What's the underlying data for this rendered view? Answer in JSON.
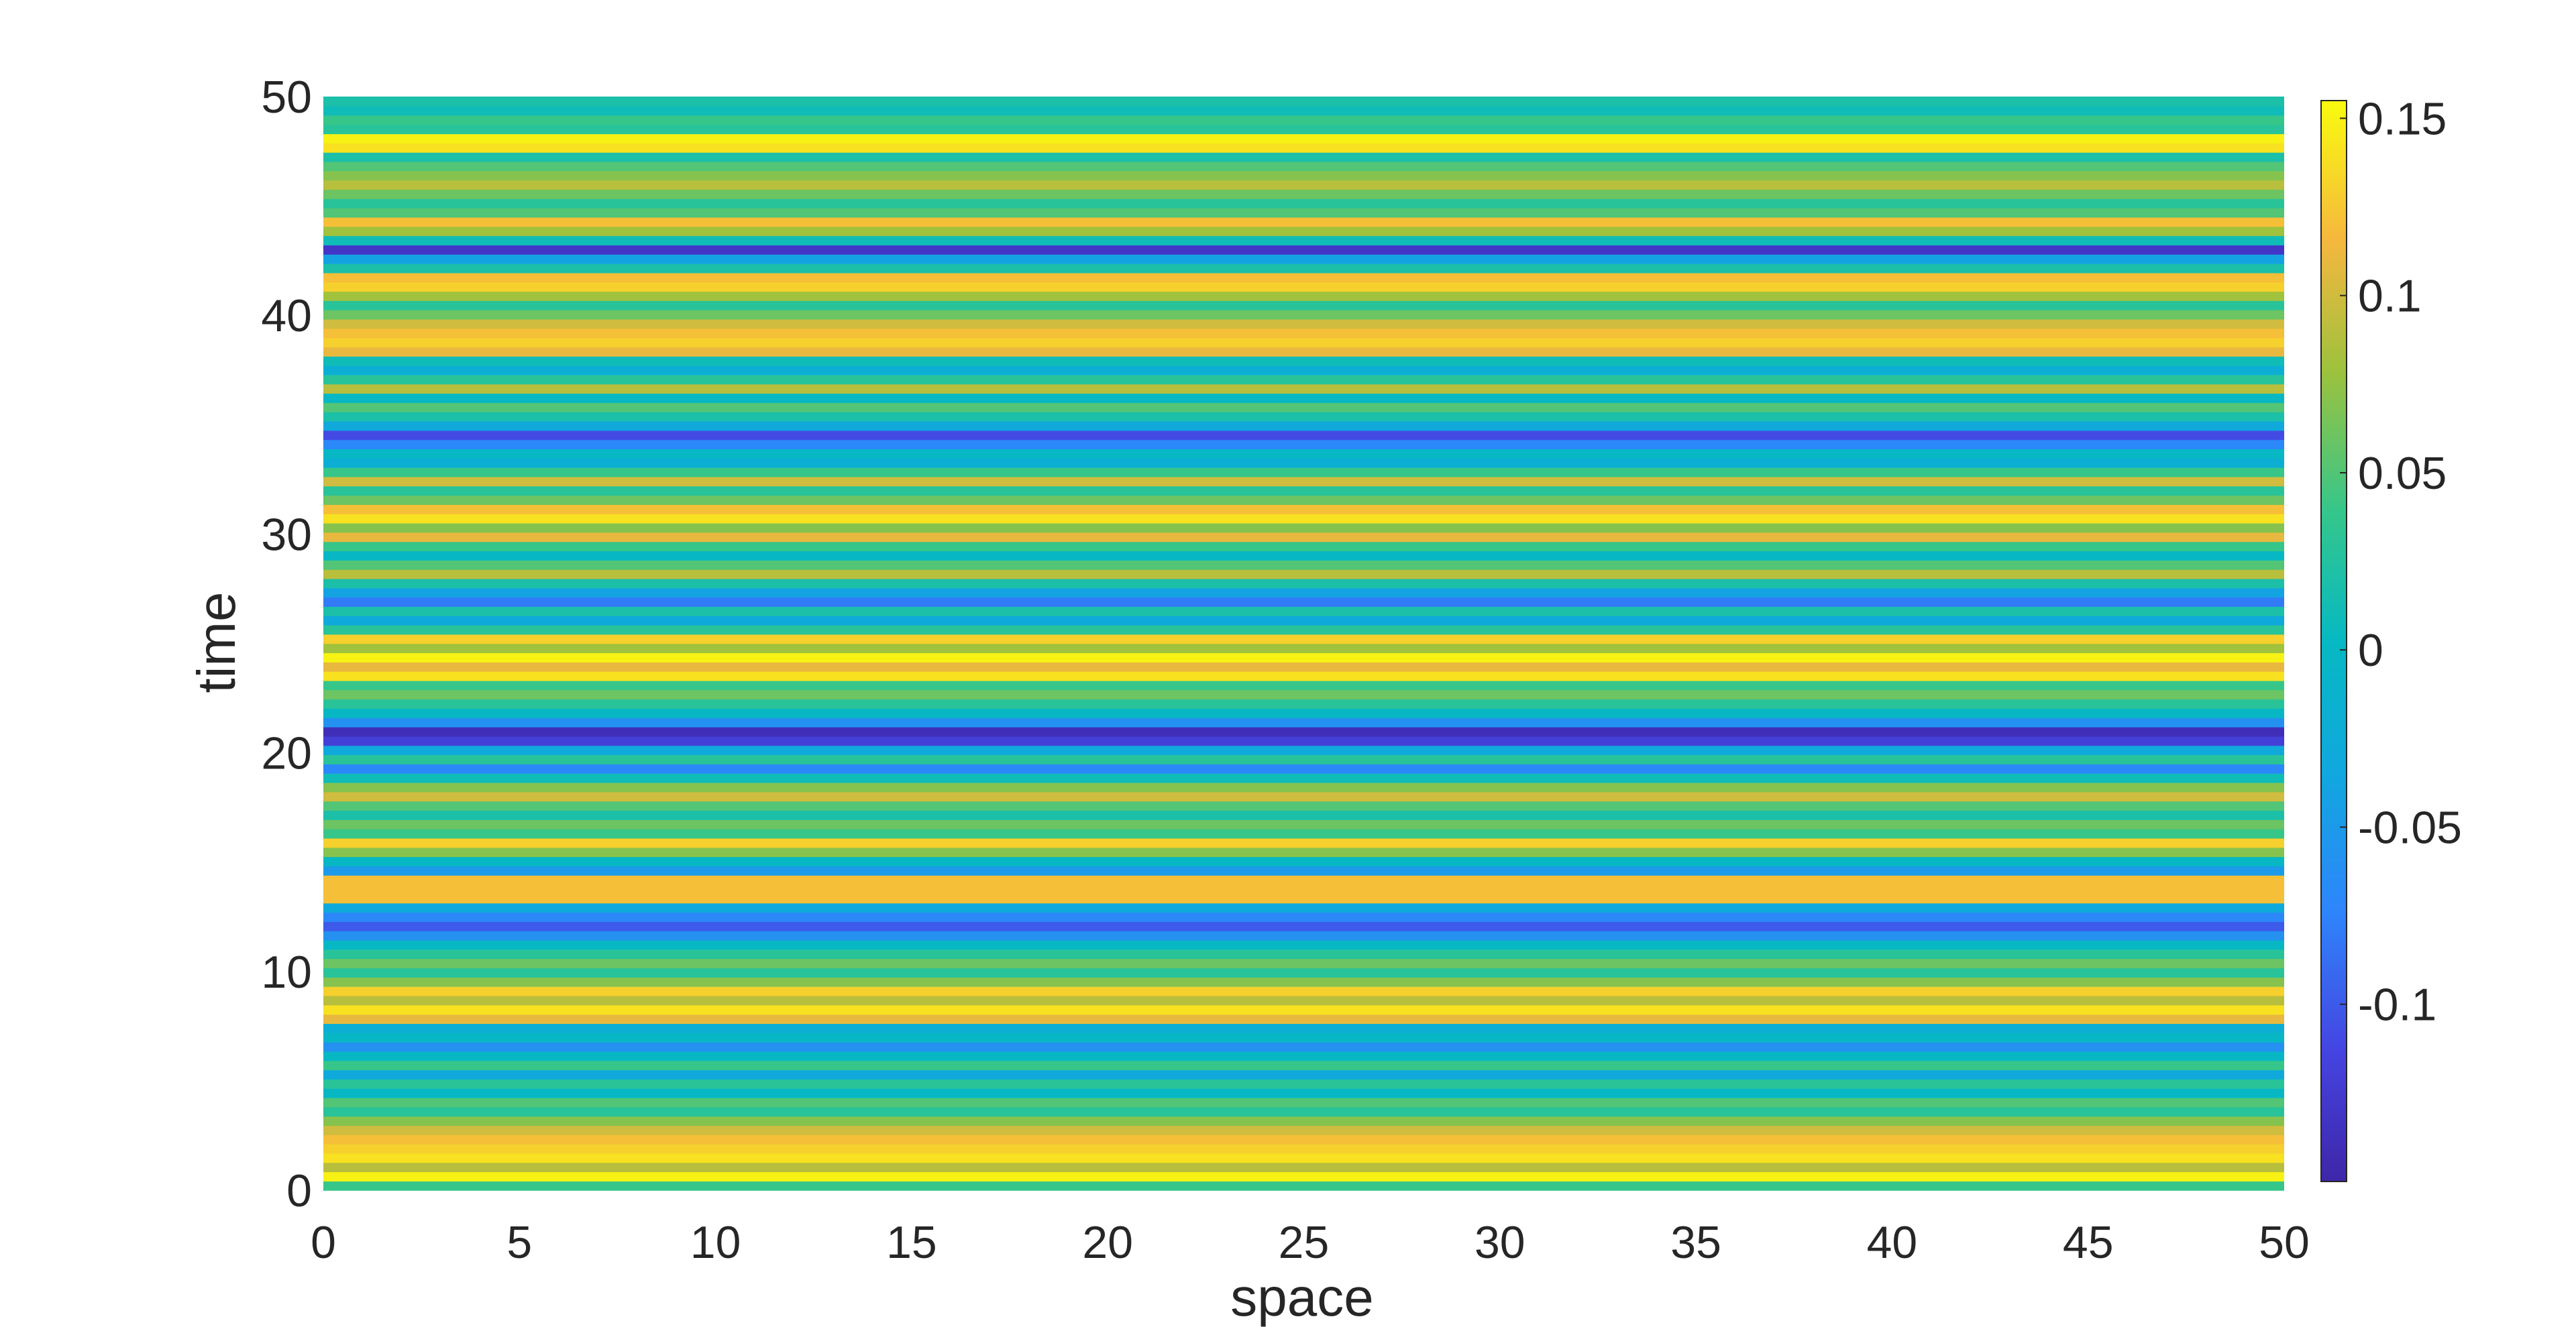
{
  "chart_data": {
    "type": "heatmap",
    "title": "",
    "xlabel": "space",
    "ylabel": "time",
    "xlim": [
      0,
      50
    ],
    "ylim": [
      0,
      50
    ],
    "xticks": [
      "0",
      "5",
      "10",
      "15",
      "20",
      "25",
      "30",
      "35",
      "40",
      "45",
      "50"
    ],
    "yticks": [
      "0",
      "10",
      "20",
      "30",
      "40",
      "50"
    ],
    "colormap": "parula",
    "colorbar": {
      "range": [
        -0.15,
        0.155
      ],
      "ticks": [
        {
          "value": 0.15,
          "label": "0.15"
        },
        {
          "value": 0.1,
          "label": "0.1"
        },
        {
          "value": 0.05,
          "label": "0.05"
        },
        {
          "value": 0,
          "label": "0"
        },
        {
          "value": -0.05,
          "label": "-0.05"
        },
        {
          "value": -0.1,
          "label": "-0.1"
        }
      ]
    },
    "description": "Field is constant in space; value varies with time only",
    "time_values": [
      0.04,
      0.15,
      0.09,
      0.14,
      0.13,
      0.12,
      0.1,
      0.07,
      0.03,
      0.05,
      0.0,
      0.03,
      -0.03,
      0.04,
      0.0,
      -0.06,
      0.0,
      -0.02,
      0.11,
      0.14,
      0.09,
      0.13,
      0.07,
      0.03,
      0.06,
      0.03,
      0.0,
      -0.06,
      -0.1,
      -0.07,
      -0.03,
      0.12,
      0.12,
      0.12,
      -0.05,
      0.0,
      0.07,
      0.13,
      0.04,
      0.06,
      0.02,
      0.05,
      0.1,
      0.07,
      0.01,
      -0.07,
      0.03,
      -0.03,
      -0.12,
      -0.14,
      -0.06,
      0.0,
      0.03,
      0.06,
      0.04,
      0.14,
      0.11,
      0.15,
      0.08,
      0.13,
      0.03,
      -0.03,
      0.02,
      -0.08,
      -0.04,
      0.02,
      0.09,
      0.05,
      0.0,
      0.04,
      0.11,
      0.07,
      0.14,
      0.12,
      0.06,
      0.03,
      0.1,
      0.04,
      -0.02,
      0.0,
      -0.07,
      -0.11,
      -0.03,
      0.02,
      0.05,
      0.0,
      0.09,
      0.03,
      -0.02,
      0.01,
      0.11,
      0.13,
      0.12,
      0.1,
      0.06,
      0.03,
      0.08,
      0.13,
      0.12,
      0.02,
      -0.04,
      -0.13,
      0.01,
      0.08,
      0.12,
      0.05,
      0.03,
      0.06,
      0.09,
      0.07,
      0.05,
      0.02,
      0.14,
      0.15,
      0.03,
      0.04,
      0.01,
      0.02
    ]
  }
}
